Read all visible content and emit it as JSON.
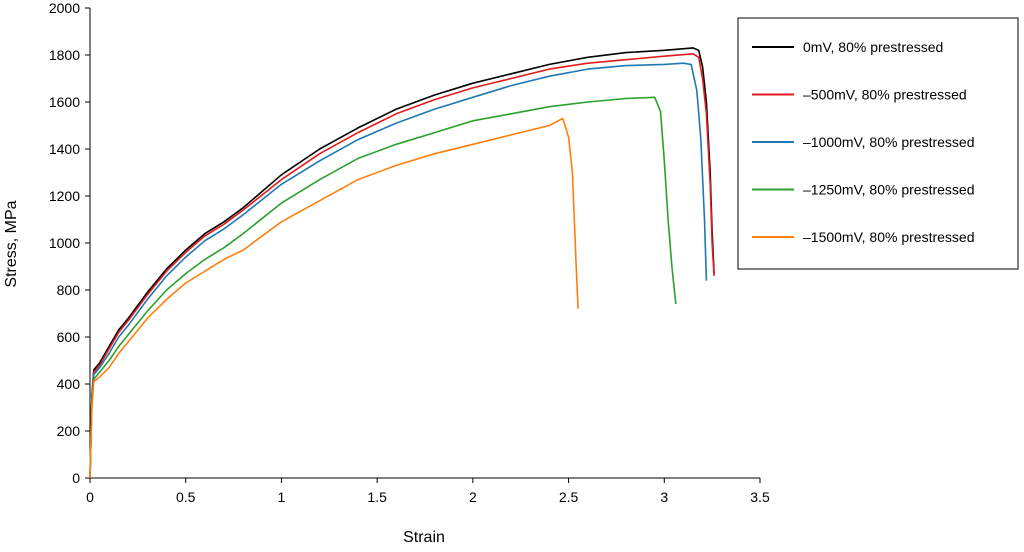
{
  "chart_data": {
    "type": "line",
    "title": "",
    "xlabel": "Strain",
    "ylabel": "Stress, MPa",
    "xlim": [
      0,
      3.5
    ],
    "ylim": [
      0,
      2000
    ],
    "x_ticks": [
      0,
      0.5,
      1,
      1.5,
      2,
      2.5,
      3,
      3.5
    ],
    "x_tick_labels": [
      "0",
      "0.5",
      "1",
      "1.5",
      "2",
      "2.5",
      "3",
      "3.5"
    ],
    "y_ticks": [
      0,
      200,
      400,
      600,
      800,
      1000,
      1200,
      1400,
      1600,
      1800,
      2000
    ],
    "y_tick_labels": [
      "0",
      "200",
      "400",
      "600",
      "800",
      "1000",
      "1200",
      "1400",
      "1600",
      "1800",
      "2000"
    ],
    "grid": false,
    "legend_position": "top-right",
    "series": [
      {
        "name": "0mV, 80% prestressed",
        "color": "#000000",
        "x": [
          0,
          0.01,
          0.02,
          0.05,
          0.1,
          0.15,
          0.2,
          0.3,
          0.4,
          0.5,
          0.6,
          0.7,
          0.8,
          1.0,
          1.2,
          1.4,
          1.6,
          1.8,
          2.0,
          2.2,
          2.4,
          2.6,
          2.8,
          3.0,
          3.15,
          3.18,
          3.2,
          3.22,
          3.24,
          3.25,
          3.26
        ],
        "y": [
          0,
          350,
          460,
          490,
          560,
          630,
          680,
          790,
          890,
          970,
          1040,
          1090,
          1150,
          1290,
          1400,
          1490,
          1570,
          1630,
          1680,
          1720,
          1760,
          1790,
          1810,
          1820,
          1830,
          1820,
          1750,
          1600,
          1300,
          1050,
          870
        ]
      },
      {
        "name": "–500mV, 80% prestressed",
        "color": "#e41a1c",
        "x": [
          0,
          0.01,
          0.02,
          0.05,
          0.1,
          0.15,
          0.2,
          0.3,
          0.4,
          0.5,
          0.6,
          0.7,
          0.8,
          1.0,
          1.2,
          1.4,
          1.6,
          1.8,
          2.0,
          2.2,
          2.4,
          2.6,
          2.8,
          3.0,
          3.15,
          3.18,
          3.2,
          3.22,
          3.24,
          3.25,
          3.26
        ],
        "y": [
          0,
          340,
          450,
          480,
          550,
          620,
          670,
          780,
          880,
          960,
          1030,
          1080,
          1140,
          1270,
          1380,
          1470,
          1550,
          1610,
          1660,
          1700,
          1740,
          1765,
          1780,
          1795,
          1805,
          1790,
          1700,
          1550,
          1250,
          1000,
          860
        ]
      },
      {
        "name": "–1000mV, 80% prestressed",
        "color": "#1f77b4",
        "x": [
          0,
          0.01,
          0.02,
          0.05,
          0.1,
          0.15,
          0.2,
          0.3,
          0.4,
          0.5,
          0.6,
          0.7,
          0.8,
          1.0,
          1.2,
          1.4,
          1.6,
          1.8,
          2.0,
          2.2,
          2.4,
          2.6,
          2.8,
          3.0,
          3.1,
          3.14,
          3.17,
          3.19,
          3.21,
          3.22
        ],
        "y": [
          0,
          330,
          440,
          470,
          530,
          600,
          650,
          760,
          860,
          940,
          1010,
          1060,
          1120,
          1250,
          1350,
          1440,
          1510,
          1570,
          1620,
          1670,
          1710,
          1740,
          1755,
          1760,
          1765,
          1760,
          1650,
          1450,
          1100,
          840
        ]
      },
      {
        "name": "–1250mV, 80% prestressed",
        "color": "#2ca02c",
        "x": [
          0,
          0.01,
          0.02,
          0.05,
          0.1,
          0.15,
          0.2,
          0.3,
          0.4,
          0.5,
          0.6,
          0.7,
          0.8,
          1.0,
          1.2,
          1.4,
          1.6,
          1.8,
          2.0,
          2.2,
          2.4,
          2.6,
          2.8,
          2.95,
          2.98,
          3.0,
          3.02,
          3.04,
          3.06
        ],
        "y": [
          0,
          320,
          420,
          450,
          500,
          560,
          610,
          710,
          800,
          870,
          930,
          980,
          1040,
          1170,
          1270,
          1360,
          1420,
          1470,
          1520,
          1550,
          1580,
          1600,
          1615,
          1620,
          1560,
          1350,
          1100,
          900,
          740
        ]
      },
      {
        "name": "–1500mV, 80% prestressed",
        "color": "#ff7f0e",
        "x": [
          0,
          0.01,
          0.02,
          0.05,
          0.1,
          0.15,
          0.2,
          0.3,
          0.4,
          0.5,
          0.6,
          0.7,
          0.8,
          1.0,
          1.2,
          1.4,
          1.6,
          1.8,
          2.0,
          2.2,
          2.4,
          2.47,
          2.5,
          2.52,
          2.53,
          2.54,
          2.55
        ],
        "y": [
          0,
          300,
          410,
          430,
          470,
          530,
          580,
          680,
          760,
          830,
          880,
          930,
          970,
          1090,
          1180,
          1270,
          1330,
          1380,
          1420,
          1460,
          1500,
          1530,
          1450,
          1300,
          1100,
          900,
          720
        ]
      }
    ]
  }
}
